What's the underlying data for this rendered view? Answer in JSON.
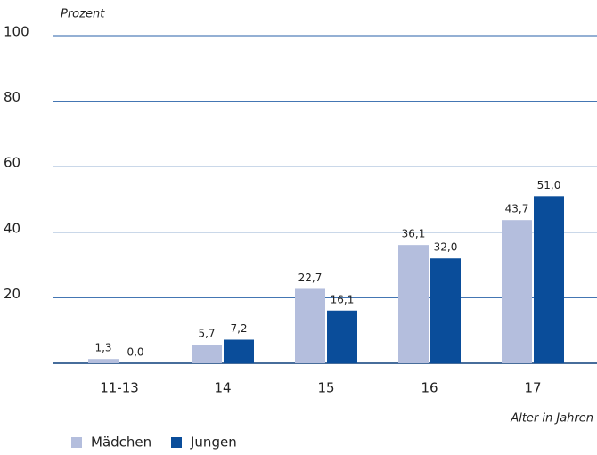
{
  "chart_data": {
    "type": "bar",
    "y_axis_label": "Prozent",
    "x_axis_label": "Alter in Jahren",
    "categories": [
      "11-13",
      "14",
      "15",
      "16",
      "17"
    ],
    "series": [
      {
        "name": "Mädchen",
        "color": "#b4bedd",
        "values": [
          1.3,
          5.7,
          22.7,
          36.1,
          43.7
        ],
        "value_labels": [
          "1,3",
          "5,7",
          "22,7",
          "36,1",
          "43,7"
        ]
      },
      {
        "name": "Jungen",
        "color": "#0a4d9a",
        "values": [
          0.0,
          7.2,
          16.1,
          32.0,
          51.0
        ],
        "value_labels": [
          "0,0",
          "7,2",
          "16,1",
          "32,0",
          "51,0"
        ]
      }
    ],
    "ylim": [
      0,
      100
    ],
    "yticks": [
      20,
      40,
      60,
      80,
      100
    ],
    "grid": true,
    "legend": "bottom-left"
  }
}
